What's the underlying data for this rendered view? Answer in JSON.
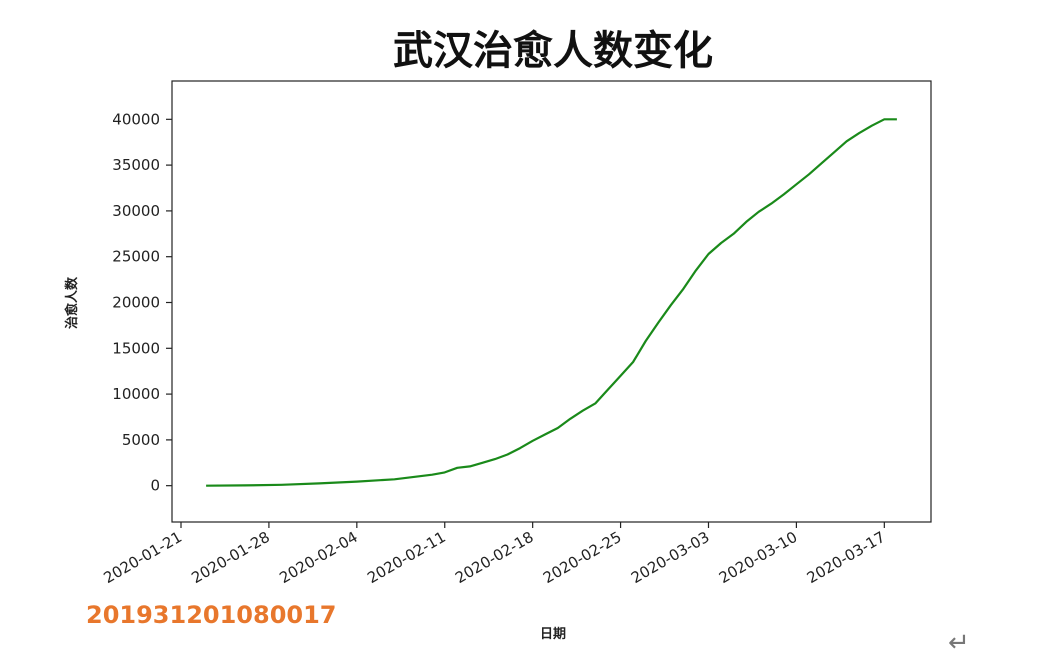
{
  "chart_data": {
    "type": "line",
    "title": "武汉治愈人数变化",
    "xlabel": "日期",
    "ylabel": "治愈人数",
    "x_tick_labels": [
      "2020-01-21",
      "2020-01-28",
      "2020-02-04",
      "2020-02-11",
      "2020-02-18",
      "2020-02-25",
      "2020-03-03",
      "2020-03-10",
      "2020-03-17"
    ],
    "y_tick_labels": [
      "0",
      "5000",
      "10000",
      "15000",
      "20000",
      "25000",
      "30000",
      "35000",
      "40000"
    ],
    "ylim": [
      -2000,
      42000
    ],
    "xlim": [
      "2020-01-21",
      "2020-03-20"
    ],
    "grid": false,
    "series": [
      {
        "color": "#1a8a1a",
        "x": [
          "2020-01-23",
          "2020-01-26",
          "2020-01-29",
          "2020-02-01",
          "2020-02-04",
          "2020-02-07",
          "2020-02-10",
          "2020-02-11",
          "2020-02-12",
          "2020-02-13",
          "2020-02-14",
          "2020-02-15",
          "2020-02-16",
          "2020-02-17",
          "2020-02-18",
          "2020-02-19",
          "2020-02-20",
          "2020-02-21",
          "2020-02-22",
          "2020-02-23",
          "2020-02-24",
          "2020-02-25",
          "2020-02-26",
          "2020-02-27",
          "2020-02-28",
          "2020-02-29",
          "2020-03-01",
          "2020-03-02",
          "2020-03-03",
          "2020-03-04",
          "2020-03-05",
          "2020-03-06",
          "2020-03-07",
          "2020-03-08",
          "2020-03-09",
          "2020-03-10",
          "2020-03-11",
          "2020-03-12",
          "2020-03-13",
          "2020-03-14",
          "2020-03-15",
          "2020-03-16",
          "2020-03-17",
          "2020-03-18"
        ],
        "y": [
          0,
          30,
          100,
          250,
          450,
          700,
          1200,
          1450,
          1950,
          2100,
          2500,
          2900,
          3400,
          4100,
          4900,
          5600,
          6300,
          7300,
          8200,
          9000,
          10500,
          12000,
          13500,
          15800,
          17800,
          19700,
          21500,
          23500,
          25300,
          26500,
          27500,
          28800,
          29900,
          30800,
          31800,
          32900,
          34000,
          35200,
          36400,
          37600,
          38500,
          39300,
          40000,
          40000
        ]
      }
    ]
  },
  "watermark": {
    "text": "201931201080017",
    "color": "#e8772c"
  },
  "return_mark": "↵"
}
